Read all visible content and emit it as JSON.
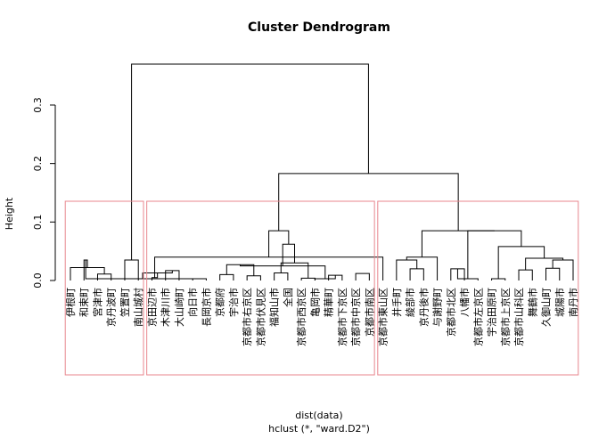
{
  "chart_data": {
    "type": "dendrogram",
    "title": "Cluster Dendrogram",
    "xlabel": "dist(data)",
    "sublabel": "hclust (*, \"ward.D2\")",
    "ylabel": "Height",
    "ylim": [
      0,
      0.37
    ],
    "yticks": [
      0.0,
      0.1,
      0.2,
      0.3
    ],
    "ytick_labels": [
      "0.0",
      "0.1",
      "0.2",
      "0.3"
    ],
    "leaves": [
      "伊根町",
      "和束町",
      "宮津市",
      "京丹波町",
      "笠置町",
      "南山城村",
      "京田辺市",
      "木津川市",
      "大山崎町",
      "向日市",
      "長岡京市",
      "京都府",
      "宇治市",
      "京都市右京区",
      "京都市伏見区",
      "福知山市",
      "全国",
      "京都市西京区",
      "亀岡市",
      "精華町",
      "京都市下京区",
      "京都市中京区",
      "京都市南区",
      "京都市東山区",
      "井手町",
      "綾部市",
      "京丹後市",
      "与謝野町",
      "京都市北区",
      "八幡市",
      "京都市左京区",
      "宇治田原町",
      "京都市上京区",
      "京都市山科区",
      "舞鶴市",
      "久御山町",
      "城陽市",
      "南丹市"
    ],
    "merges": [
      [
        -3,
        -4,
        0.011
      ],
      [
        -1,
        1,
        0.022
      ],
      [
        -5,
        -6,
        0.035
      ],
      [
        -2,
        2,
        0.035
      ],
      [
        -10,
        -11,
        0.003
      ],
      [
        -20,
        -21,
        0.009
      ],
      [
        -8,
        -9,
        0.017
      ],
      [
        5,
        4,
        0.003
      ],
      [
        -14,
        -15,
        0.008
      ],
      [
        -12,
        -13,
        0.01
      ],
      [
        -18,
        -19,
        0.004
      ],
      [
        7,
        8,
        0.013
      ],
      [
        -16,
        -17,
        0.013
      ],
      [
        -19,
        6,
        0.003
      ],
      [
        -7,
        12,
        0.005
      ],
      [
        -22,
        -23,
        0.012
      ],
      [
        13,
        11,
        0.03
      ],
      [
        15,
        -24,
        0.04
      ],
      [
        -26,
        -27,
        0.02
      ],
      [
        -25,
        19,
        0.035
      ],
      [
        -28,
        20,
        0.04
      ],
      [
        -29,
        -30,
        0.02
      ],
      [
        22,
        -31,
        0.003
      ],
      [
        -32,
        -33,
        0.003
      ],
      [
        -34,
        -35,
        0.018
      ],
      [
        -36,
        -37,
        0.021
      ],
      [
        -38,
        26,
        0.035
      ],
      [
        25,
        27,
        0.038
      ],
      [
        24,
        28,
        0.058
      ],
      [
        23,
        29,
        0.085
      ],
      [
        21,
        30,
        0.085
      ],
      [
        10,
        9,
        0.027
      ],
      [
        14,
        32,
        0.025
      ],
      [
        33,
        17,
        0.062
      ],
      [
        18,
        34,
        0.085
      ],
      [
        35,
        31,
        0.183
      ],
      [
        3,
        36,
        0.37
      ]
    ],
    "cluster_boxes": [
      {
        "first": 1,
        "last": 6
      },
      {
        "first": 7,
        "last": 23
      },
      {
        "first": 24,
        "last": 38
      }
    ],
    "box_color": "#e8868e",
    "line_color": "#000000"
  }
}
